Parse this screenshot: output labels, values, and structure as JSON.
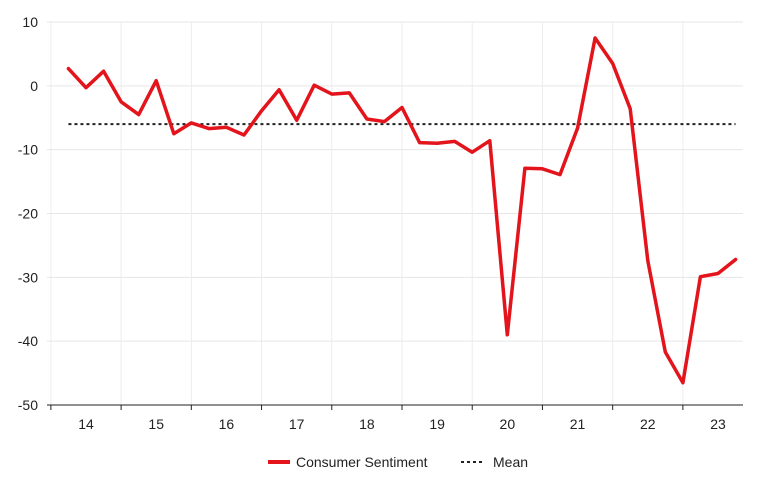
{
  "chart_data": {
    "type": "line",
    "x_tick_labels": [
      "14",
      "15",
      "16",
      "17",
      "18",
      "19",
      "20",
      "21",
      "22",
      "23"
    ],
    "ylim": [
      -50,
      10
    ],
    "y_ticks": [
      10,
      0,
      -10,
      -20,
      -30,
      -40,
      -50
    ],
    "grid": true,
    "legend_position": "bottom-center",
    "series": [
      {
        "name": "Consumer Sentiment",
        "color": "#e3141b",
        "style": "solid",
        "x": [
          2013.75,
          2014.0,
          2014.25,
          2014.5,
          2014.75,
          2015.0,
          2015.25,
          2015.5,
          2015.75,
          2016.0,
          2016.25,
          2016.5,
          2016.75,
          2017.0,
          2017.25,
          2017.5,
          2017.75,
          2018.0,
          2018.25,
          2018.5,
          2018.75,
          2019.0,
          2019.25,
          2019.5,
          2019.75,
          2020.0,
          2020.25,
          2020.5,
          2020.75,
          2021.0,
          2021.25,
          2021.5,
          2021.75,
          2022.0,
          2022.25,
          2022.5,
          2022.75,
          2023.0,
          2023.25
        ],
        "values": [
          2.7,
          -0.3,
          2.3,
          -2.5,
          -4.5,
          0.8,
          -7.5,
          -5.8,
          -6.7,
          -6.5,
          -7.7,
          -3.9,
          -0.6,
          -5.4,
          0.1,
          -1.3,
          -1.1,
          -5.2,
          -5.6,
          -3.4,
          -8.9,
          -9.0,
          -8.7,
          -10.4,
          -8.6,
          -39.0,
          -12.9,
          -13.0,
          -13.9,
          -6.6,
          7.5,
          3.5,
          -3.6,
          -27.4,
          -41.7,
          -46.5,
          -29.9,
          -29.4,
          -27.2
        ]
      },
      {
        "name": "Mean",
        "color": "#222222",
        "style": "dotted",
        "values": [
          -6.0
        ]
      }
    ]
  }
}
